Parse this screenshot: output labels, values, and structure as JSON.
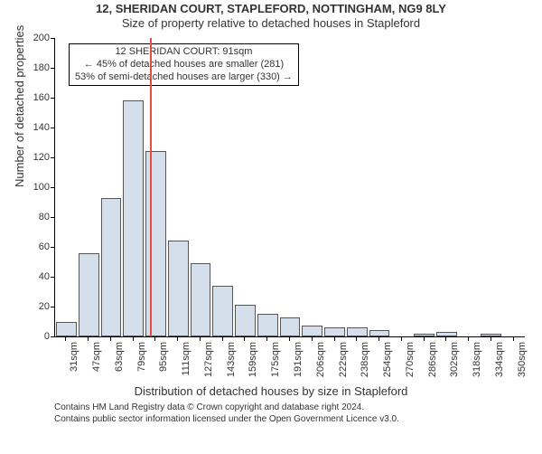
{
  "title": "12, SHERIDAN COURT, STAPLEFORD, NOTTINGHAM, NG9 8LY",
  "subtitle": "Size of property relative to detached houses in Stapleford",
  "ylabel": "Number of detached properties",
  "xlabel": "Distribution of detached houses by size in Stapleford",
  "chart": {
    "type": "histogram",
    "ylim": [
      0,
      200
    ],
    "ytick_step": 20,
    "bar_fill": "#d5dfeb",
    "bar_border": "#555555",
    "ref_line_color": "#e74c3c",
    "ref_value_sqm": 91,
    "xtick_start": 31,
    "xtick_step": 16,
    "xtick_count": 21,
    "xtick_suffix": "sqm",
    "bars": [
      {
        "x": 31,
        "y": 10
      },
      {
        "x": 47,
        "y": 56
      },
      {
        "x": 63,
        "y": 93
      },
      {
        "x": 79,
        "y": 158
      },
      {
        "x": 95,
        "y": 124
      },
      {
        "x": 111,
        "y": 64
      },
      {
        "x": 127,
        "y": 49
      },
      {
        "x": 143,
        "y": 34
      },
      {
        "x": 159,
        "y": 21
      },
      {
        "x": 175,
        "y": 15
      },
      {
        "x": 191,
        "y": 13
      },
      {
        "x": 206,
        "y": 7
      },
      {
        "x": 222,
        "y": 6
      },
      {
        "x": 238,
        "y": 6
      },
      {
        "x": 254,
        "y": 4
      },
      {
        "x": 270,
        "y": 0
      },
      {
        "x": 286,
        "y": 2
      },
      {
        "x": 302,
        "y": 3
      },
      {
        "x": 318,
        "y": 0
      },
      {
        "x": 334,
        "y": 2
      },
      {
        "x": 350,
        "y": 0
      }
    ]
  },
  "info_box": {
    "line1": "12 SHERIDAN COURT: 91sqm",
    "line2": "← 45% of detached houses are smaller (281)",
    "line3": "53% of semi-detached houses are larger (330) →"
  },
  "footer": {
    "line1": "Contains HM Land Registry data © Crown copyright and database right 2024.",
    "line2": "Contains public sector information licensed under the Open Government Licence v3.0."
  }
}
